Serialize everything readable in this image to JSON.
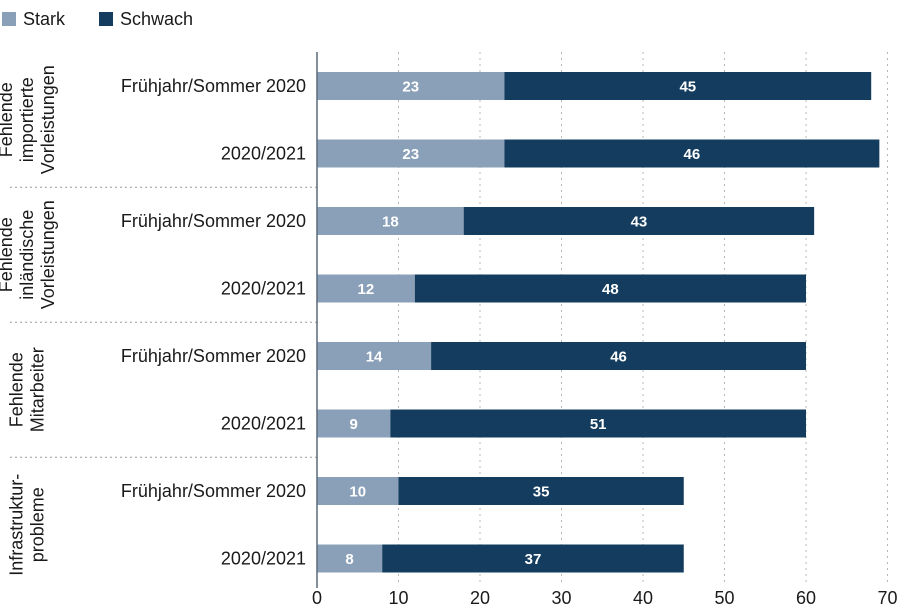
{
  "colors": {
    "stark": "#8aa0b8",
    "schwach": "#133c5e",
    "grid": "#b8b8b8",
    "axis": "#5a6b7a",
    "separator": "#9a9a9a"
  },
  "chart_data": {
    "type": "bar",
    "orientation": "horizontal",
    "stacked": true,
    "legend": {
      "placement": "top-left",
      "entries": [
        "Stark",
        "Schwach"
      ]
    },
    "series": [
      {
        "name": "Stark",
        "color": "#8aa0b8"
      },
      {
        "name": "Schwach",
        "color": "#133c5e"
      }
    ],
    "groups": [
      {
        "label_lines": [
          "Fehlende",
          "importierte",
          "Vorleistungen"
        ],
        "rows": [
          {
            "label": "Frühjahr/Sommer 2020",
            "values": [
              23,
              45
            ]
          },
          {
            "label": "2020/2021",
            "values": [
              23,
              46
            ]
          }
        ]
      },
      {
        "label_lines": [
          "Fehlende",
          "inländische",
          "Vorleistungen"
        ],
        "rows": [
          {
            "label": "Frühjahr/Sommer 2020",
            "values": [
              18,
              43
            ]
          },
          {
            "label": "2020/2021",
            "values": [
              12,
              48
            ]
          }
        ]
      },
      {
        "label_lines": [
          "Fehlende",
          "Mitarbeiter"
        ],
        "rows": [
          {
            "label": "Frühjahr/Sommer 2020",
            "values": [
              14,
              46
            ]
          },
          {
            "label": "2020/2021",
            "values": [
              9,
              51
            ]
          }
        ]
      },
      {
        "label_lines": [
          "Infrastruktur-",
          "probleme"
        ],
        "rows": [
          {
            "label": "Frühjahr/Sommer 2020",
            "values": [
              10,
              35
            ]
          },
          {
            "label": "2020/2021",
            "values": [
              8,
              37
            ]
          }
        ]
      }
    ],
    "x_ticks": [
      0,
      10,
      20,
      30,
      40,
      50,
      60,
      70
    ],
    "xlim": [
      0,
      72
    ],
    "grid": "vertical dotted"
  }
}
